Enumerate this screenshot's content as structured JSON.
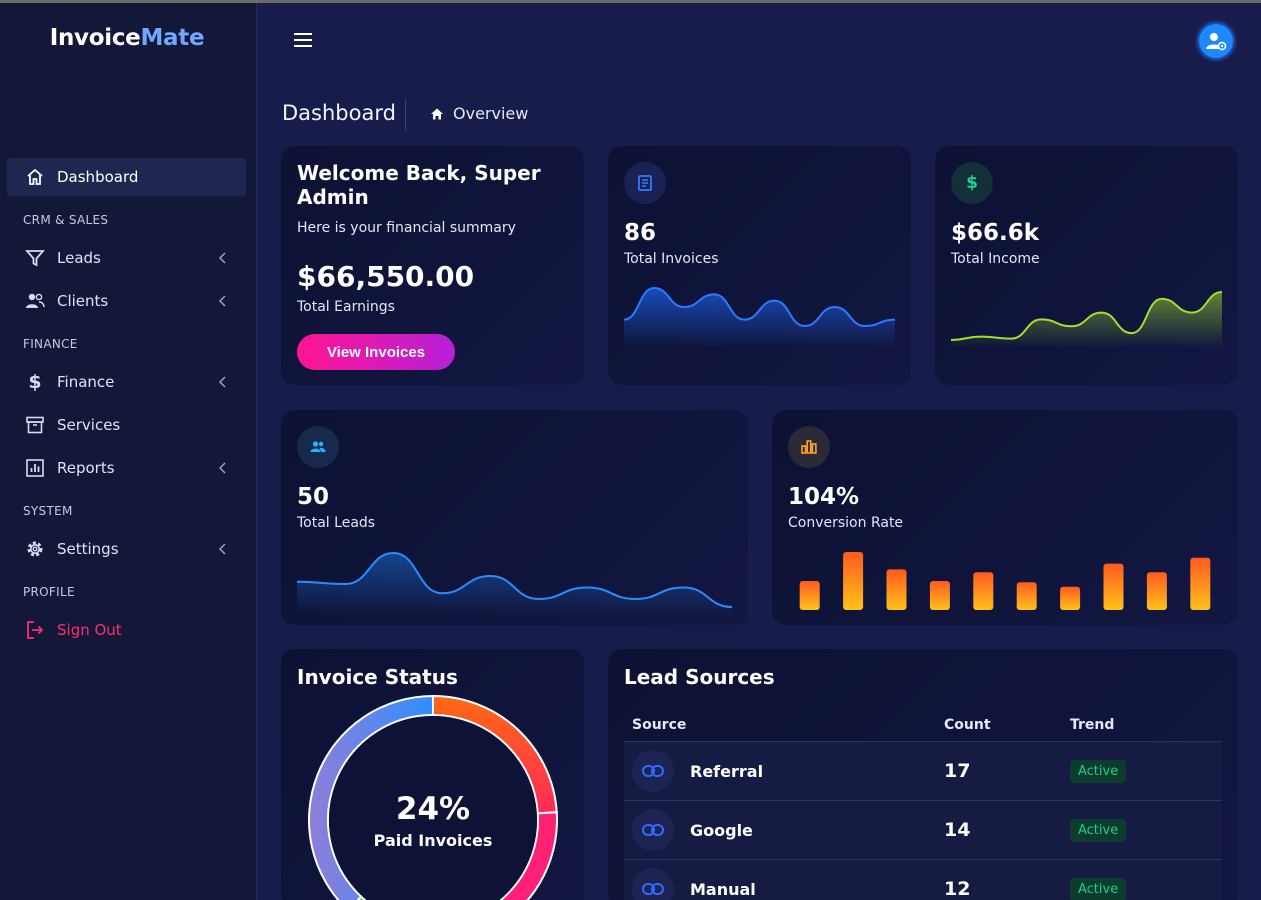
{
  "app": {
    "logo_main": "Invoice",
    "logo_accent": "Mate"
  },
  "sidebar": {
    "dashboard": "Dashboard",
    "section_crm": "CRM & SALES",
    "leads": "Leads",
    "clients": "Clients",
    "section_finance": "FINANCE",
    "finance": "Finance",
    "services": "Services",
    "reports": "Reports",
    "section_system": "SYSTEM",
    "settings": "Settings",
    "section_profile": "PROFILE",
    "sign_out": "Sign Out"
  },
  "header": {
    "title": "Dashboard",
    "breadcrumb": "Overview"
  },
  "welcome": {
    "title": "Welcome Back, Super Admin",
    "subtitle": "Here is your financial summary",
    "amount": "$66,550.00",
    "amount_label": "Total Earnings",
    "button": "View Invoices"
  },
  "stats": {
    "invoices": {
      "value": "86",
      "label": "Total Invoices"
    },
    "income": {
      "value": "$66.6k",
      "label": "Total Income"
    },
    "leads": {
      "value": "50",
      "label": "Total Leads"
    },
    "conversion": {
      "value": "104%",
      "label": "Conversion Rate"
    }
  },
  "invoice_status": {
    "title": "Invoice Status",
    "value": "24%",
    "label": "Paid Invoices"
  },
  "lead_sources": {
    "title": "Lead Sources",
    "columns": [
      "Source",
      "Count",
      "Trend"
    ],
    "rows": [
      {
        "source": "Referral",
        "count": "17",
        "trend": "Active"
      },
      {
        "source": "Google",
        "count": "14",
        "trend": "Active"
      },
      {
        "source": "Manual",
        "count": "12",
        "trend": "Active"
      }
    ]
  },
  "colors": {
    "background": "#171c4a",
    "sidebar": "#131838",
    "accent_blue": "#1e88ff",
    "accent_green": "#a4e02a",
    "accent_orange": "#ffa31a",
    "signout": "#ff2d6f",
    "badge_green": "#19d08a"
  },
  "chart_data": [
    {
      "type": "area",
      "series": [
        {
          "values": [
            3,
            8,
            5,
            7,
            3,
            6,
            2,
            5,
            2,
            3
          ]
        }
      ]
    },
    {
      "type": "area",
      "series": [
        {
          "values": [
            1,
            1.5,
            1.2,
            4,
            3,
            5,
            2,
            7,
            5,
            8
          ]
        }
      ]
    },
    {
      "type": "area",
      "series": [
        {
          "values": [
            3,
            2.8,
            5.5,
            2,
            3.5,
            1.5,
            2.5,
            1.5,
            2.5,
            0.8
          ]
        }
      ]
    },
    {
      "type": "bar",
      "values": [
        5,
        10,
        7,
        5,
        6.5,
        4.8,
        4,
        8,
        6.5,
        9
      ]
    },
    {
      "type": "pie",
      "values": [
        24,
        26,
        12,
        38
      ]
    }
  ]
}
